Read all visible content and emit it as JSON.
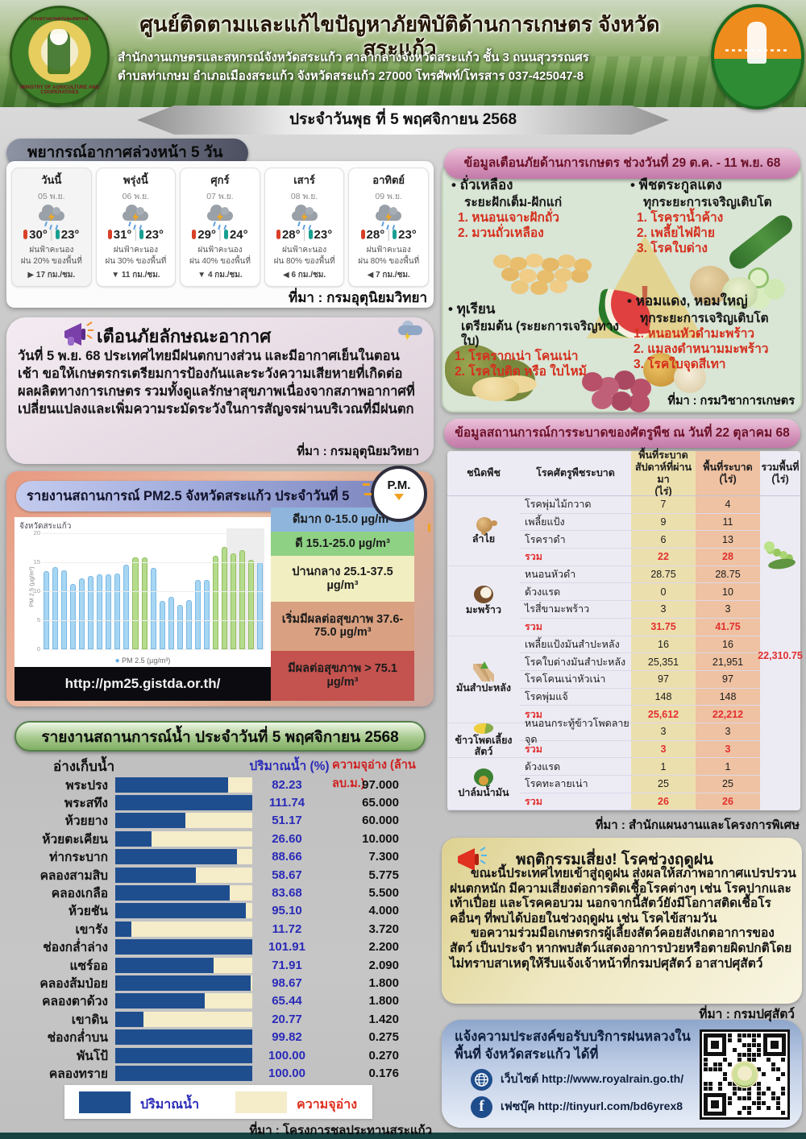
{
  "header": {
    "title": "ศูนย์ติดตามและแก้ไขปัญหาภัยพิบัติด้านการเกษตร จังหวัดสระแก้ว",
    "addr1": "สำนักงานเกษตรและสหกรณ์จังหวัดสระแก้ว ศาลากลางจังหวัดสระแก้ว ชั้น 3 ถนนสุวรรณศร",
    "addr2": "ตำบลท่าเกษม อำเภอเมืองสระแก้ว จังหวัดสระแก้ว 27000 โทรศัพท์/โทรสาร 037-425047-8",
    "date_banner": "ประจำวันพุธ ที่ 5 พฤศจิกายน 2568",
    "left_logo_ring_top": "กระทรวงเกษตรและสหกรณ์",
    "left_logo_ring_bottom": "MINISTRY OF AGRICULTURE AND COOPERATIVES"
  },
  "weather": {
    "title": "พยากรณ์อากาศล่วงหน้า 5 วัน",
    "source": "ที่มา : กรมอุตุนิยมวิทยา",
    "days": [
      {
        "name": "วันนี้",
        "date": "05 พ.ย.",
        "tmax": "30°",
        "tmin": "23°",
        "desc1": "ฝนฟ้าคะนอง",
        "desc2": "ฝน 20% ของพื้นที่",
        "wind_dir": "▶",
        "wind": "17 กม./ชม."
      },
      {
        "name": "พรุ่งนี้",
        "date": "06 พ.ย.",
        "tmax": "31°",
        "tmin": "23°",
        "desc1": "ฝนฟ้าคะนอง",
        "desc2": "ฝน 30% ของพื้นที่",
        "wind_dir": "▼",
        "wind": "11 กม./ชม."
      },
      {
        "name": "ศุกร์",
        "date": "07 พ.ย.",
        "tmax": "29°",
        "tmin": "24°",
        "desc1": "ฝนฟ้าคะนอง",
        "desc2": "ฝน 40% ของพื้นที่",
        "wind_dir": "▼",
        "wind": "4 กม./ชม."
      },
      {
        "name": "เสาร์",
        "date": "08 พ.ย.",
        "tmax": "28°",
        "tmin": "23°",
        "desc1": "ฝนฟ้าคะนอง",
        "desc2": "ฝน 80% ของพื้นที่",
        "wind_dir": "◀",
        "wind": "6 กม./ชม."
      },
      {
        "name": "อาทิตย์",
        "date": "09 พ.ย.",
        "tmax": "28°",
        "tmin": "23°",
        "desc1": "ฝนฟ้าคะนอง",
        "desc2": "ฝน 80% ของพื้นที่",
        "wind_dir": "◀",
        "wind": "7 กม./ชม."
      }
    ]
  },
  "agri_warning": {
    "title": "ข้อมูลเตือนภัยด้านการเกษตร ช่วงวันที่ 29 ต.ค. - 11 พ.ย. 68",
    "source": "ที่มา : กรมวิชาการเกษตร",
    "items": [
      {
        "crop": "• ถั่วเหลือง",
        "stage": "ระยะฝักเต็ม-ฝักแก่",
        "threats": [
          "1. หนอนเจาะฝักถั่ว",
          "2. มวนถั่วเหลือง"
        ]
      },
      {
        "crop": "• พืชตระกูลแตง",
        "stage": "ทุกระยะการเจริญเติบโต",
        "threats": [
          "1. โรคราน้ำค้าง",
          "2. เพลี้ยไฟฝ้าย",
          "3. โรคใบด่าง"
        ]
      },
      {
        "crop": "• ทุเรียน",
        "stage": "เตรียมต้น (ระยะการเจริญทางใบ)",
        "threats": [
          "1. โรครากเน่า โคนเน่า",
          "2. โรคใบติด หรือ ใบไหม้"
        ]
      },
      {
        "crop": "• หอมแดง, หอมใหญ่",
        "stage": "ทุกระยะการเจริญเติบโต",
        "threats": [
          "1. หนอนหัวดำมะพร้าว",
          "2. แมลงดำหนามมะพร้าว",
          "3. โรคใบจุดสีเทา"
        ]
      }
    ]
  },
  "weather_alert": {
    "title": "เตือนภัยลักษณะอากาศ",
    "body": "วันที่ 5 พ.ย. 68 ประเทศไทยมีฝนตกบางส่วน และมีอากาศเย็นในตอนเช้า ขอให้เกษตรกรเตรียมการป้องกันและระวังความเสียหายที่เกิดต่อผลผลิตทางการเกษตร รวมทั้งดูแลรักษาสุขภาพเนื่องจากสภาพอากาศที่เปลี่ยนแปลงและเพิ่มความระมัดระวังในการสัญจรผ่านบริเวณที่มีฝนตก",
    "source": "ที่มา : กรมอุตุนิยมวิทยา"
  },
  "pm25": {
    "title": "รายงานสถานการณ์ PM2.5 จังหวัดสระแก้ว ประจำวันที่ 5 พฤศจิกายน 2568",
    "badge": "P.M.",
    "region_label": "จังหวัดสระแก้ว",
    "ylabel": "PM 2.5 (µg/m³)",
    "legend": "PM 2.5 (µg/m³)",
    "url": "http://pm25.gistda.or.th/",
    "bar_color_normal": "#a6d6f2",
    "bar_color_good": "#b5dc8c",
    "levels": [
      {
        "label": "ดีมาก 0-15.0 µg/m³",
        "color": "#8fb5dd",
        "weight": 30
      },
      {
        "label": "ดี 15.1-25.0 µg/m³",
        "color": "#8ed184",
        "weight": 30
      },
      {
        "label": "ปานกลาง 25.1-37.5 µg/m³",
        "color": "#f1eec2",
        "weight": 52
      },
      {
        "label": "เริ่มมีผลต่อสุขภาพ 37.6-75.0 µg/m³",
        "color": "#d9a181",
        "weight": 62
      },
      {
        "label": "มีผลต่อสุขภาพ > 75.1 µg/m³",
        "color": "#c4524e",
        "weight": 64
      }
    ]
  },
  "water": {
    "title": "รายงานสถานการณ์น้ำ ประจำวันที่ 5 พฤศจิกายน 2568",
    "col_name": "อ่างเก็บน้ำ",
    "col_pct": "ปริมาณน้ำ (%)",
    "col_cap": "ความจุอ่าง (ล้าน ลบ.ม.)",
    "legend_volume": "ปริมาณน้ำ",
    "legend_capacity": "ความจุอ่าง",
    "source": "ที่มา : โครงการชลประทานสระแก้ว",
    "reservoirs": [
      {
        "name": "พระปรง",
        "pct": "82.23",
        "cap": "97.000"
      },
      {
        "name": "พระสทึง",
        "pct": "111.74",
        "cap": "65.000"
      },
      {
        "name": "ห้วยยาง",
        "pct": "51.17",
        "cap": "60.000"
      },
      {
        "name": "ห้วยตะเคียน",
        "pct": "26.60",
        "cap": "10.000"
      },
      {
        "name": "ท่ากระบาก",
        "pct": "88.66",
        "cap": "7.300"
      },
      {
        "name": "คลองสามสิบ",
        "pct": "58.67",
        "cap": "5.775"
      },
      {
        "name": "คลองเกลือ",
        "pct": "83.68",
        "cap": "5.500"
      },
      {
        "name": "ห้วยชัน",
        "pct": "95.10",
        "cap": "4.000"
      },
      {
        "name": "เขารัง",
        "pct": "11.72",
        "cap": "3.720"
      },
      {
        "name": "ช่องกล่ำล่าง",
        "pct": "101.91",
        "cap": "2.200"
      },
      {
        "name": "แซร์ออ",
        "pct": "71.91",
        "cap": "2.090"
      },
      {
        "name": "คลองส้มป่อย",
        "pct": "98.67",
        "cap": "1.800"
      },
      {
        "name": "คลองตาด้วง",
        "pct": "65.44",
        "cap": "1.800"
      },
      {
        "name": "เขาดิน",
        "pct": "20.77",
        "cap": "1.420"
      },
      {
        "name": "ช่องกล่ำบน",
        "pct": "99.82",
        "cap": "0.275"
      },
      {
        "name": "พันโป้",
        "pct": "100.00",
        "cap": "0.270"
      },
      {
        "name": "คลองทราย",
        "pct": "100.00",
        "cap": "0.176"
      }
    ]
  },
  "pest": {
    "title": "ข้อมูลสถานการณ์การระบาดของศัตรูพืช ณ วันที่ 22 ตุลาคม 68",
    "headers": [
      "ชนิดพืช",
      "โรคศัตรูพืชระบาด",
      "พื้นที่ระบาด\nสัปดาห์ที่ผ่านมา\n(ไร่)",
      "พื้นที่ระบาด\n(ไร่)",
      "รวมพื้นที่\n(ไร่)"
    ],
    "total": "22,310.75",
    "source": "ที่มา : สำนักแผนงานและโครงการพิเศษ",
    "groups": [
      {
        "crop": "ลำไย",
        "icon": "longan",
        "rows": [
          {
            "disease": "โรคพุ่มไม้กวาด",
            "past": "7",
            "now": "4"
          },
          {
            "disease": "เพลี้ยแป้ง",
            "past": "9",
            "now": "11"
          },
          {
            "disease": "โรคราดำ",
            "past": "6",
            "now": "13"
          },
          {
            "disease": "รวม",
            "past": "22",
            "now": "28",
            "sum": true
          }
        ]
      },
      {
        "crop": "มะพร้าว",
        "icon": "coconut",
        "rows": [
          {
            "disease": "หนอนหัวดำ",
            "past": "28.75",
            "now": "28.75"
          },
          {
            "disease": "ด้วงแรด",
            "past": "0",
            "now": "10"
          },
          {
            "disease": "ไรสี่ขามะพร้าว",
            "past": "3",
            "now": "3"
          },
          {
            "disease": "รวม",
            "past": "31.75",
            "now": "41.75",
            "sum": true
          }
        ]
      },
      {
        "crop": "มันสำปะหลัง",
        "icon": "cassava",
        "rows": [
          {
            "disease": "เพลี้ยแป้งมันสำปะหลัง",
            "past": "16",
            "now": "16"
          },
          {
            "disease": "โรคใบด่างมันสำปะหลัง",
            "past": "25,351",
            "now": "21,951"
          },
          {
            "disease": "โรคโคนเน่าหัวเน่า",
            "past": "97",
            "now": "97"
          },
          {
            "disease": "โรคพุ่มแจ้",
            "past": "148",
            "now": "148"
          },
          {
            "disease": "รวม",
            "past": "25,612",
            "now": "22,212",
            "sum": true
          }
        ]
      },
      {
        "crop": "ข้าวโพดเลี้ยงสัตว์",
        "icon": "corn",
        "rows": [
          {
            "disease": "หนอนกระทู้ข้าวโพดลายจุด",
            "past": "3",
            "now": "3"
          },
          {
            "disease": "รวม",
            "past": "3",
            "now": "3",
            "sum": true
          }
        ]
      },
      {
        "crop": "ปาล์มน้ำมัน",
        "icon": "palm",
        "rows": [
          {
            "disease": "ด้วงแรด",
            "past": "1",
            "now": "1"
          },
          {
            "disease": "โรคทะลายเน่า",
            "past": "25",
            "now": "25"
          },
          {
            "disease": "รวม",
            "past": "26",
            "now": "26",
            "sum": true
          }
        ]
      }
    ]
  },
  "risk": {
    "title": "พฤติกรรมเสี่ยง! โรคช่วงฤดูฝน",
    "p1": "ขณะนี้ประเทศไทยเข้าสู่ฤดูฝน ส่งผลให้สภาพอากาศแปรปรวนฝนตกหนัก มีความเสี่ยงต่อการติดเชื้อโรคต่างๆ เช่น โรคปากและเท้าเปื่อย และโรคคอบวม นอกจากนี้สัตว์ยังมีโอกาสติดเชื้อโรคอื่นๆ ที่พบได้บ่อยในช่วงฤดูฝน เช่น โรคไข้สามวัน",
    "p2": "ขอความร่วมมือเกษตรกรผู้เลี้ยงสัตว์คอยสังเกตอาการของสัตว์ เป็นประจำ หากพบสัตว์แสดงอาการป่วยหรือตายผิดปกติโดยไม่ทราบสาเหตุให้รีบแจ้งเจ้าหน้าที่กรมปศุสัตว์ อาสาปศุสัตว์",
    "source": "ที่มา : กรมปศุสัตว์"
  },
  "royalrain": {
    "text": "แจ้งความประสงค์ขอรับบริการฝนหลวงในพื้นที่ จังหวัดสระแก้ว ได้ที่",
    "website": "เว็บไซต์ http://www.royalrain.go.th/",
    "facebook": "เฟซบุ๊ค http://tinyurl.com/bd6yrex8"
  },
  "colors": {
    "accent_pink_pill": "#cf8bb4",
    "water_bar_fill": "#1f4e8f",
    "water_bar_track": "#f5ecca",
    "pct_text": "#2a2ab8",
    "cap_header_text": "#d02020",
    "threat_text": "#d52f1e",
    "sum_text": "#e23030"
  },
  "chart_data": [
    {
      "type": "bar",
      "title": "จังหวัดสระแก้ว",
      "xlabel": "",
      "ylabel": "PM 2.5 (µg/m³)",
      "ylim": [
        0,
        20
      ],
      "yticks": [
        0,
        5,
        10,
        15,
        20
      ],
      "legend_entries": [
        "PM 2.5 (µg/m³)"
      ],
      "legend_position": "bottom",
      "grid": true,
      "values": [
        13.2,
        13.9,
        13.3,
        11.0,
        12.0,
        12.4,
        12.7,
        12.7,
        12.8,
        14.3,
        15.6,
        15.6,
        13.8,
        8.0,
        8.8,
        7.4,
        8.2,
        11.6,
        11.6,
        15.8,
        17.4,
        16.3,
        16.8,
        15.2,
        14.7
      ],
      "note": "bars >15 rendered green, <=15 blue; right ~17% of plot shaded gray (forecast)"
    },
    {
      "type": "bar",
      "title": "รายงานสถานการณ์น้ำ ประจำวันที่ 5 พฤศจิกายน 2568",
      "categories": [
        "พระปรง",
        "พระสทึง",
        "ห้วยยาง",
        "ห้วยตะเคียน",
        "ท่ากระบาก",
        "คลองสามสิบ",
        "คลองเกลือ",
        "ห้วยชัน",
        "เขารัง",
        "ช่องกล่ำล่าง",
        "แซร์ออ",
        "คลองส้มป่อย",
        "คลองตาด้วง",
        "เขาดิน",
        "ช่องกล่ำบน",
        "พันโป้",
        "คลองทราย"
      ],
      "series": [
        {
          "name": "ปริมาณน้ำ (%)",
          "values": [
            82.23,
            111.74,
            51.17,
            26.6,
            88.66,
            58.67,
            83.68,
            95.1,
            11.72,
            101.91,
            71.91,
            98.67,
            65.44,
            20.77,
            99.82,
            100.0,
            100.0
          ]
        },
        {
          "name": "ความจุอ่าง (ล้าน ลบ.ม.)",
          "values": [
            97.0,
            65.0,
            60.0,
            10.0,
            7.3,
            5.775,
            5.5,
            4.0,
            3.72,
            2.2,
            2.09,
            1.8,
            1.8,
            1.42,
            0.275,
            0.27,
            0.176
          ]
        }
      ],
      "legend_entries": [
        "ปริมาณน้ำ",
        "ความจุอ่าง"
      ],
      "orientation": "horizontal"
    }
  ]
}
